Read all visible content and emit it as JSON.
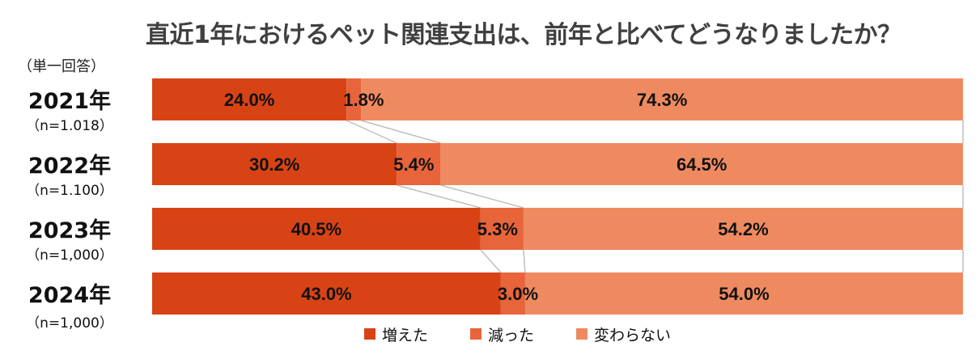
{
  "title": "直近1年におけるペット関連支出は、前年と比べてどうなりましたか？",
  "subtitle": "（単一回答）",
  "colors": {
    "increased": "#D84315",
    "decreased": "#E8643A",
    "unchanged": "#EF8A60",
    "connector": "#BFBFBF"
  },
  "rows": [
    {
      "year": "2021年",
      "n": "（n=1.018）",
      "values": [
        24.0,
        1.8,
        74.3
      ],
      "labels": [
        "24.0%",
        "1.8%",
        "74.3%"
      ]
    },
    {
      "year": "2022年",
      "n": "（n=1.100）",
      "values": [
        30.2,
        5.4,
        64.5
      ],
      "labels": [
        "30.2%",
        "5.4%",
        "64.5%"
      ]
    },
    {
      "year": "2023年",
      "n": "（n=1,000）",
      "values": [
        40.5,
        5.3,
        54.2
      ],
      "labels": [
        "40.5%",
        "5.3%",
        "54.2%"
      ]
    },
    {
      "year": "2024年",
      "n": "（n=1,000）",
      "values": [
        43.0,
        3.0,
        54.0
      ],
      "labels": [
        "43.0%",
        "3.0%",
        "54.0%"
      ]
    }
  ],
  "legend": [
    {
      "key": "increased",
      "label": "増えた"
    },
    {
      "key": "decreased",
      "label": "減った"
    },
    {
      "key": "unchanged",
      "label": "変わらない"
    }
  ],
  "chart_data": {
    "type": "bar",
    "orientation": "horizontal",
    "stacked": "100%",
    "title": "直近1年におけるペット関連支出は、前年と比べてどうなりましたか？",
    "subtitle": "（単一回答）",
    "categories": [
      "2021年",
      "2022年",
      "2023年",
      "2024年"
    ],
    "sample_sizes": [
      "（n=1.018）",
      "（n=1.100）",
      "（n=1,000）",
      "（n=1,000）"
    ],
    "series": [
      {
        "name": "増えた",
        "values": [
          24.0,
          30.2,
          40.5,
          43.0
        ]
      },
      {
        "name": "減った",
        "values": [
          1.8,
          5.4,
          5.3,
          3.0
        ]
      },
      {
        "name": "変わらない",
        "values": [
          74.3,
          64.5,
          54.2,
          54.0
        ]
      }
    ],
    "unit": "%",
    "legend_position": "bottom",
    "grid": false,
    "series_connector_lines": true
  }
}
